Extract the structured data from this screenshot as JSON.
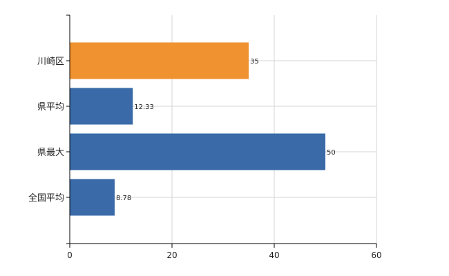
{
  "chart_data": {
    "type": "bar",
    "orientation": "horizontal",
    "categories": [
      "川崎区",
      "県平均",
      "県最大",
      "全国平均"
    ],
    "values": [
      35,
      12.33,
      50,
      8.78
    ],
    "value_labels": [
      "35",
      "12.33",
      "50",
      "8.78"
    ],
    "highlight_index": 0,
    "colors": {
      "highlight": "#f0922f",
      "default": "#3a6aa8",
      "grid": "#d4d4d4",
      "axis": "#000000"
    },
    "xlim": [
      0,
      60
    ],
    "xticks": [
      0,
      20,
      40,
      60
    ],
    "xtick_labels": [
      "0",
      "20",
      "40",
      "60"
    ],
    "grid": true,
    "legend": false
  }
}
